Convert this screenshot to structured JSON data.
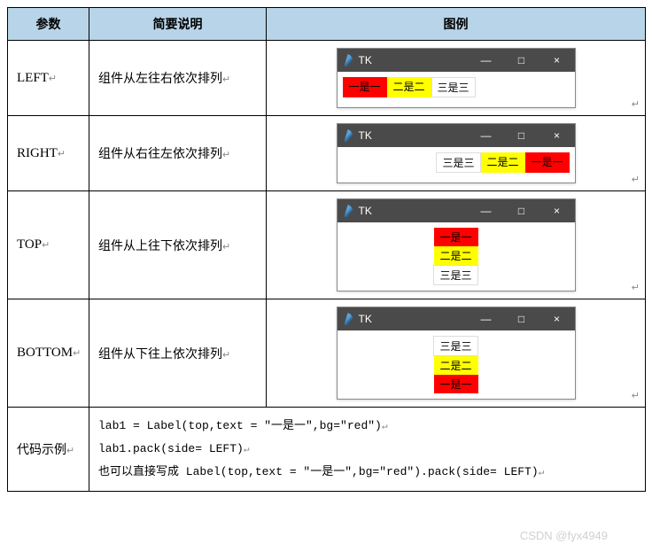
{
  "headers": {
    "param": "参数",
    "desc": "简要说明",
    "figure": "图例"
  },
  "tk_title": "TK",
  "win_buttons": {
    "min": "—",
    "max": "□",
    "close": "×"
  },
  "labels": {
    "one": "一是一",
    "two": "二是二",
    "three": "三是三"
  },
  "colors": {
    "red": "#ff0000",
    "yellow": "#ffff00",
    "white": "#ffffff",
    "black": "#000000",
    "titlebar": "#4a4a4a",
    "header_bg": "#b8d4e8"
  },
  "rows": {
    "left": {
      "param": "LEFT",
      "desc": "组件从左往右依次排列"
    },
    "right": {
      "param": "RIGHT",
      "desc": "组件从右往左依次排列"
    },
    "top": {
      "param": "TOP",
      "desc": "组件从上往下依次排列"
    },
    "bottom": {
      "param": "BOTTOM",
      "desc": "组件从下往上依次排列"
    }
  },
  "code_row": {
    "label": "代码示例",
    "line1": "lab1 = Label(top,text = \"一是一\",bg=\"red\")",
    "line2": "lab1.pack(side= LEFT)",
    "line3": "也可以直接写成 Label(top,text = \"一是一\",bg=\"red\").pack(side= LEFT)"
  },
  "cr_mark": "↵",
  "watermark": "CSDN @fyx4949"
}
